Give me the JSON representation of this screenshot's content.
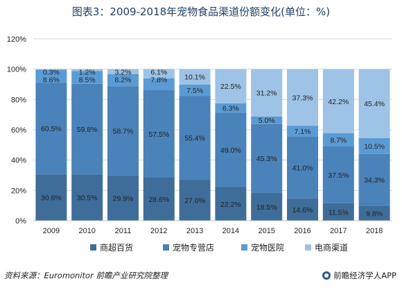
{
  "title": "图表3：2009-2018年宠物食品渠道份额变化(单位：%)",
  "source": "资料来源：Euromonitor 前瞻产业研究院整理",
  "brand": "前瞻经济学人APP",
  "chart_data": {
    "type": "bar",
    "stacked": true,
    "categories": [
      "2009",
      "2010",
      "2011",
      "2012",
      "2013",
      "2014",
      "2015",
      "2016",
      "2017",
      "2018"
    ],
    "y_ticks": [
      "0%",
      "20%",
      "40%",
      "60%",
      "80%",
      "100%",
      "120%"
    ],
    "ylim": [
      0,
      120
    ],
    "legend_position": "bottom",
    "series": [
      {
        "name": "商超百货",
        "color": "#3f6d99",
        "values": [
          30.6,
          30.5,
          29.9,
          28.6,
          27.0,
          22.2,
          18.5,
          14.6,
          11.5,
          9.8
        ],
        "labels": [
          "30.6%",
          "30.5%",
          "29.9%",
          "28.6%",
          "27.0%",
          "22.2%",
          "18.5%",
          "14.6%",
          "11.5%",
          "9.8%"
        ]
      },
      {
        "name": "宠物专营店",
        "color": "#4a82ba",
        "values": [
          60.5,
          59.8,
          58.7,
          57.5,
          55.4,
          49.0,
          45.3,
          41.0,
          37.5,
          34.3
        ],
        "labels": [
          "60.5%",
          "59.8%",
          "58.7%",
          "57.5%",
          "55.4%",
          "49.0%",
          "45.3%",
          "41.0%",
          "37.5%",
          "34.3%"
        ]
      },
      {
        "name": "宠物医院",
        "color": "#5b9bd5",
        "values": [
          8.6,
          8.5,
          8.2,
          7.8,
          7.5,
          6.3,
          5.0,
          7.1,
          8.7,
          10.5
        ],
        "labels": [
          "8.6%",
          "8.5%",
          "8.2%",
          "7.8%",
          "7.5%",
          "6.3%",
          "5.0%",
          "7.1%",
          "8.7%",
          "10.5%"
        ]
      },
      {
        "name": "电商渠道",
        "color": "#9dc3e6",
        "values": [
          0.3,
          1.2,
          3.2,
          6.1,
          10.1,
          22.5,
          31.2,
          37.3,
          42.2,
          45.4
        ],
        "labels": [
          "0.3%",
          "1.2%",
          "3.2%",
          "6.1%",
          "10.1%",
          "22.5%",
          "31.2%",
          "37.3%",
          "42.2%",
          "45.4%"
        ]
      }
    ]
  }
}
